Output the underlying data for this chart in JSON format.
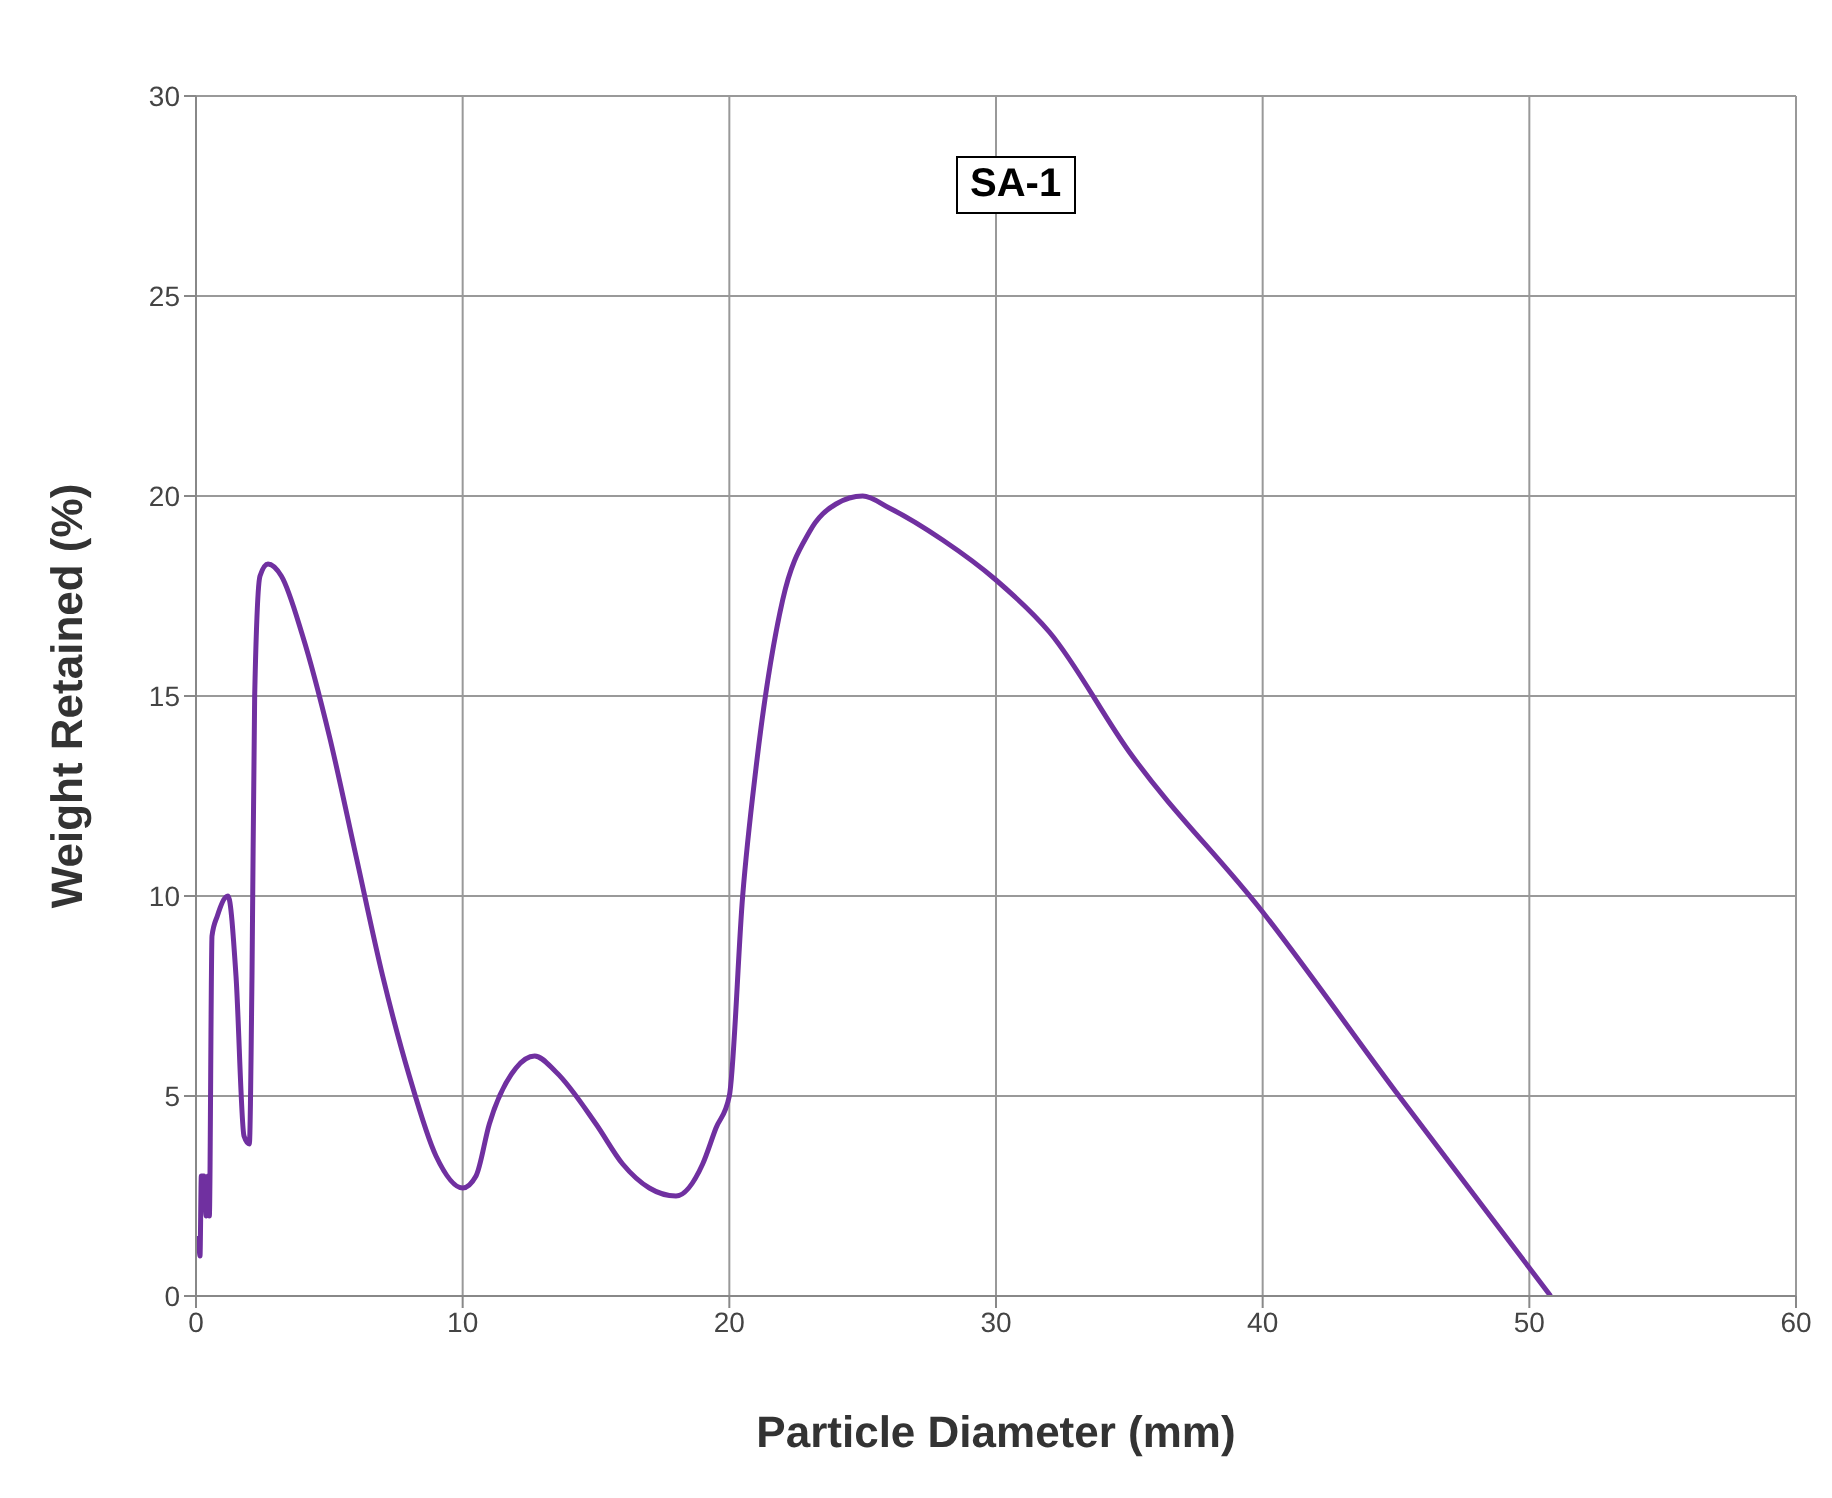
{
  "chart_data": {
    "type": "line",
    "annotations": [
      "SA-1"
    ],
    "xlabel": "Particle Diameter (mm)",
    "ylabel": "Weight Retained (%)",
    "xlim": [
      0,
      60
    ],
    "xticks": [
      0,
      10,
      20,
      30,
      40,
      50,
      60
    ],
    "ylim": [
      0,
      30
    ],
    "yticks": [
      0,
      5,
      10,
      15,
      20,
      25,
      30
    ],
    "grid": true,
    "marker": "none",
    "line_style": "solid",
    "series": [
      {
        "color": "#7030a0",
        "x": [
          0.1,
          0.15,
          0.2,
          0.3,
          0.38,
          0.45,
          0.5,
          0.6,
          0.8,
          1.2,
          1.5,
          1.8,
          2.0,
          2.1,
          2.2,
          2.4,
          2.7,
          3.2,
          4,
          5,
          6,
          7,
          8,
          9,
          10,
          10.5,
          11,
          12,
          12.7,
          13.5,
          15,
          16,
          17,
          18,
          19,
          19.5,
          20,
          20.5,
          21,
          22,
          23,
          24,
          25,
          26,
          28,
          30,
          32,
          35,
          40,
          45,
          50.8
        ],
        "values": [
          1.5,
          1,
          3,
          3,
          2,
          3,
          2,
          9,
          9.5,
          10,
          8,
          4,
          3.8,
          8,
          15,
          18,
          18.3,
          18,
          16.5,
          14,
          11,
          8,
          5.5,
          3.5,
          2.7,
          3,
          4.3,
          5.7,
          6,
          5.6,
          4.3,
          3.3,
          2.7,
          2.5,
          3.3,
          4.2,
          5,
          10,
          13.2,
          17.4,
          19.1,
          19.8,
          20,
          19.7,
          18.9,
          17.9,
          16.6,
          13.6,
          9.6,
          5.1,
          0
        ]
      }
    ]
  }
}
